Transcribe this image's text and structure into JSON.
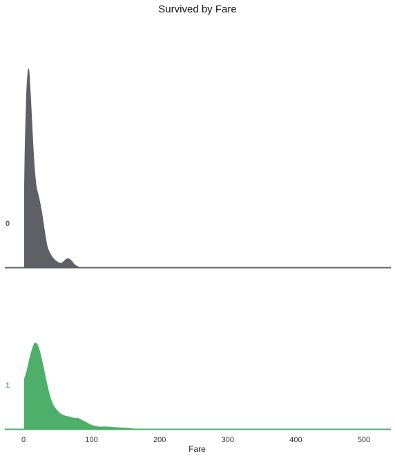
{
  "chart_data": {
    "type": "area",
    "title": "Survived by Fare",
    "xlabel": "Fare",
    "ylabel": "",
    "xlim": [
      -28,
      542
    ],
    "xticks": [
      0,
      100,
      200,
      300,
      400,
      500
    ],
    "series": [
      {
        "name": "0",
        "color": "#5f5f66",
        "x": [
          0,
          1,
          3,
          5,
          7,
          8,
          9,
          10,
          12,
          14,
          17,
          20,
          24,
          28,
          32,
          36,
          40,
          45,
          50,
          55,
          60,
          65,
          70,
          75,
          80,
          90,
          100,
          110,
          120,
          130,
          140,
          150,
          160,
          200,
          250,
          262,
          280,
          300,
          520
        ],
        "y": [
          0.38,
          0.6,
          0.85,
          0.97,
          1.0,
          1.0,
          0.99,
          0.96,
          0.84,
          0.7,
          0.52,
          0.41,
          0.35,
          0.28,
          0.19,
          0.11,
          0.075,
          0.048,
          0.034,
          0.027,
          0.04,
          0.05,
          0.042,
          0.022,
          0.01,
          0.003,
          0.003,
          0.006,
          0.002,
          0.002,
          0.001,
          0.003,
          0.001,
          0.001,
          0.0,
          0.003,
          0.0,
          0.0,
          0.0
        ]
      },
      {
        "name": "1",
        "color": "#4daf6a",
        "x": [
          0,
          3,
          6,
          9,
          12,
          15,
          18,
          22,
          26,
          30,
          34,
          38,
          42,
          46,
          50,
          55,
          60,
          65,
          70,
          75,
          80,
          85,
          90,
          95,
          100,
          110,
          120,
          130,
          140,
          150,
          160,
          170,
          180,
          200,
          220,
          240,
          250,
          263,
          280,
          300,
          350,
          400,
          450,
          520
        ],
        "y": [
          0.59,
          0.66,
          0.76,
          0.86,
          0.94,
          1.0,
          1.01,
          0.98,
          0.88,
          0.74,
          0.59,
          0.45,
          0.34,
          0.27,
          0.23,
          0.19,
          0.17,
          0.16,
          0.15,
          0.14,
          0.14,
          0.12,
          0.1,
          0.08,
          0.06,
          0.04,
          0.04,
          0.035,
          0.03,
          0.025,
          0.018,
          0.01,
          0.004,
          0.004,
          0.014,
          0.008,
          0.006,
          0.01,
          0.004,
          0.003,
          0.002,
          0.002,
          0.002,
          0.002
        ]
      }
    ]
  }
}
